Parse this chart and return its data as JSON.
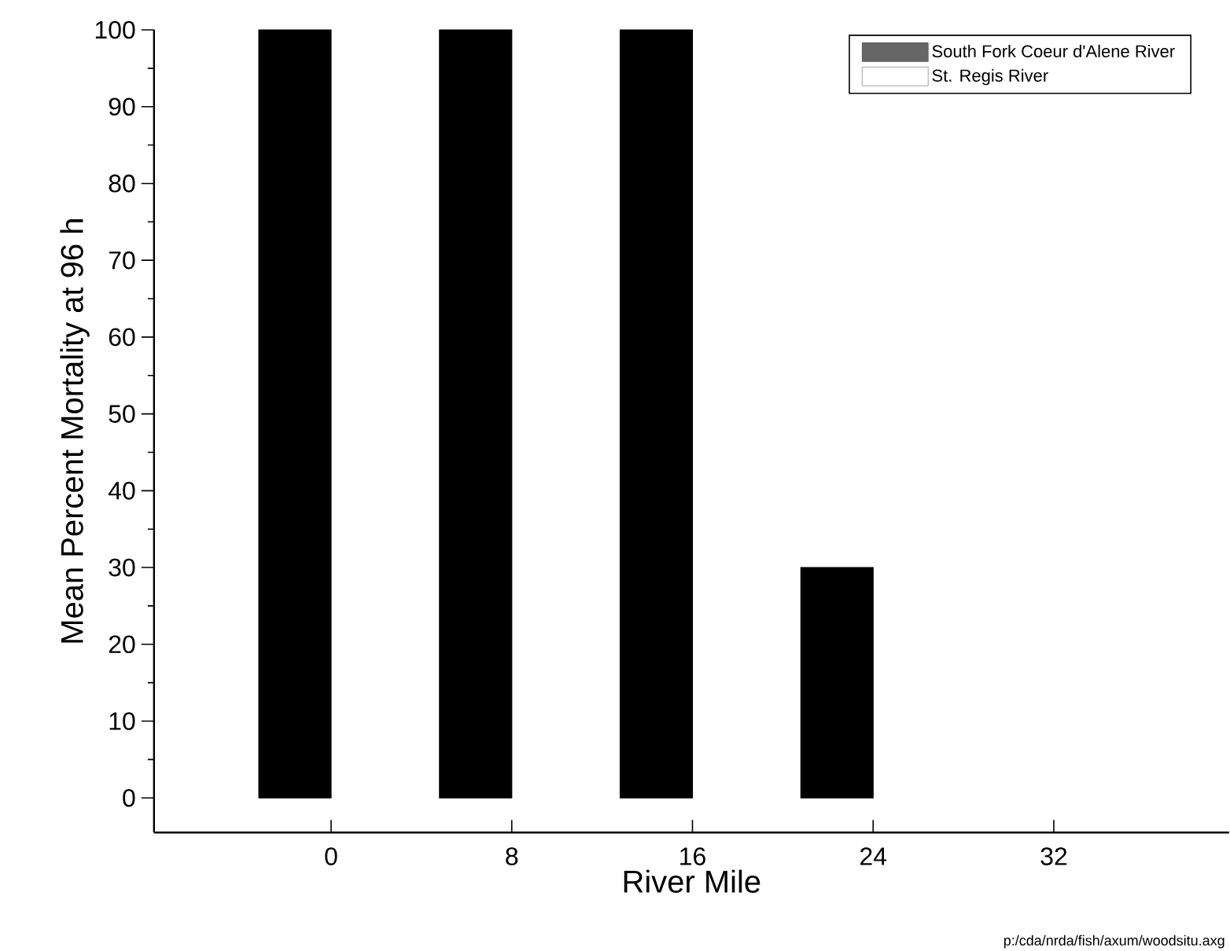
{
  "chart_data": {
    "type": "bar",
    "xlabel": "River Mile",
    "ylabel": "Mean Percent Mortality at 96 h",
    "categories": [
      "0",
      "8",
      "16",
      "24",
      "32"
    ],
    "series": [
      {
        "name": "South Fork Coeur d'Alene River",
        "color": "#000000",
        "values": [
          100,
          100,
          100,
          30,
          0
        ]
      },
      {
        "name": "St. Regis River",
        "color": "#ffffff",
        "values": [
          0,
          0,
          0,
          0,
          0
        ]
      }
    ],
    "ylim": [
      -4.5,
      100
    ],
    "yticks": [
      0,
      {
        "value": 5,
        "label": null
      },
      10,
      {
        "value": 15,
        "label": null
      },
      20,
      {
        "value": 25,
        "label": null
      },
      30,
      {
        "value": 35,
        "label": null
      },
      40,
      {
        "value": 45,
        "label": null
      },
      50,
      {
        "value": 55,
        "label": null
      },
      60,
      {
        "value": 65,
        "label": null
      },
      70,
      {
        "value": 75,
        "label": null
      },
      80,
      {
        "value": 85,
        "label": null
      },
      90,
      {
        "value": 95,
        "label": null
      },
      100
    ],
    "legend": "top right",
    "grid": false,
    "annotations": [
      "p:/cda/nrda/fish/axum/woodsitu.axg"
    ]
  }
}
